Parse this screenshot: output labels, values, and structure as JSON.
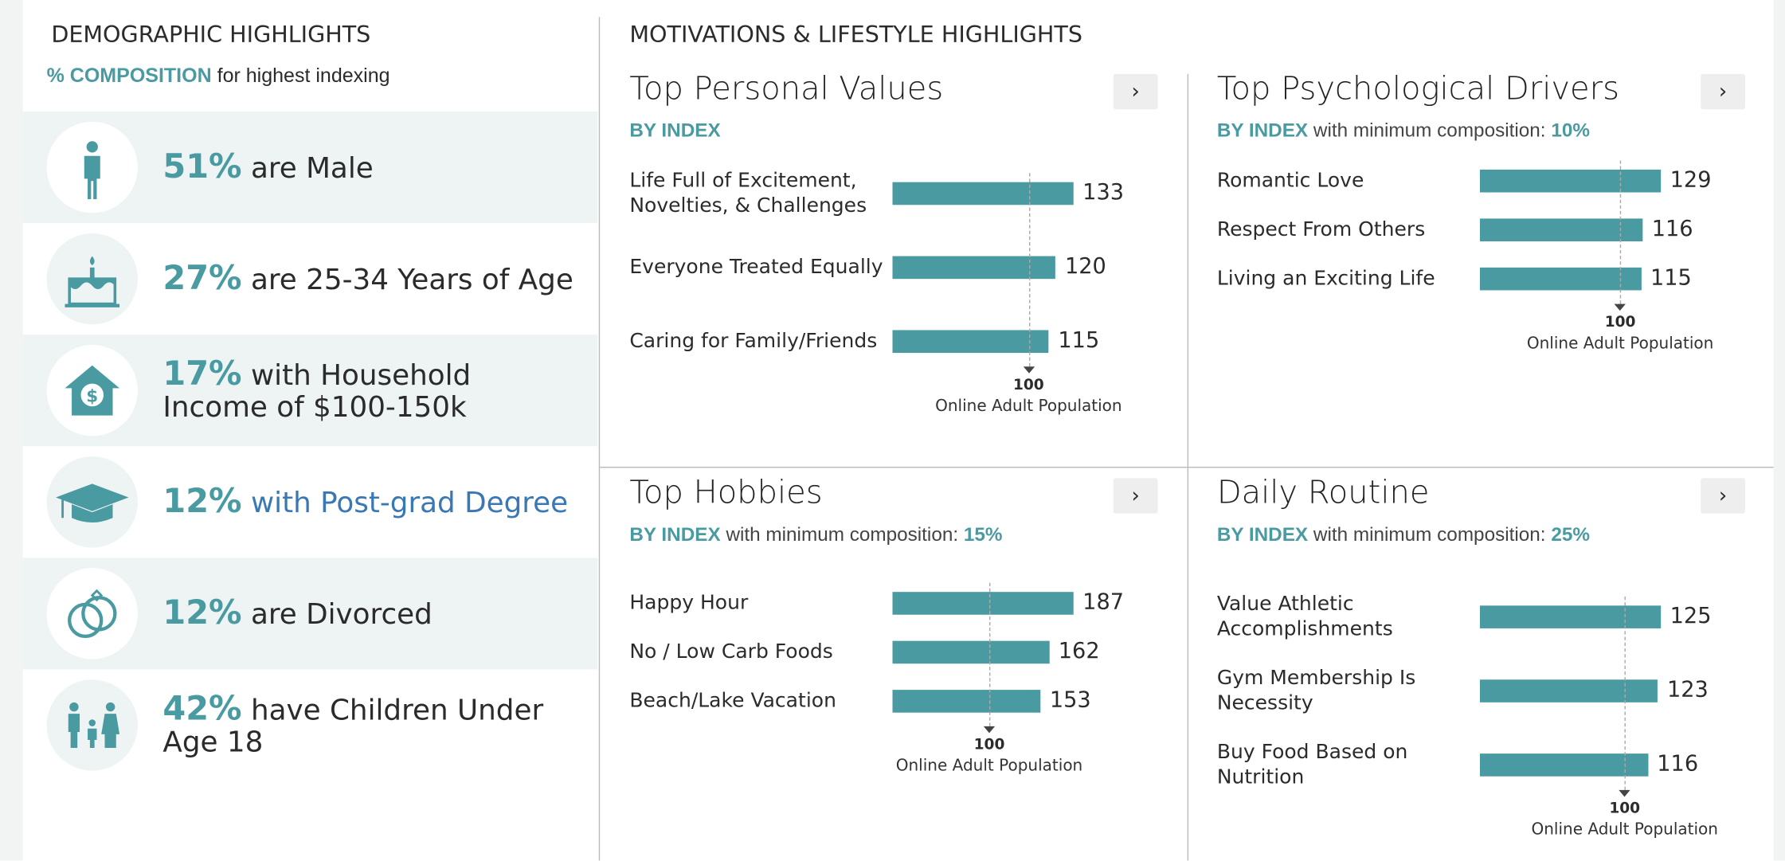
{
  "demographics": {
    "title": "DEMOGRAPHIC HIGHLIGHTS",
    "subtitle_highlight": "% COMPOSITION",
    "subtitle_rest": "for highest indexing",
    "items": [
      {
        "percent": "51%",
        "text": "are Male"
      },
      {
        "percent": "27%",
        "text": "are 25-34 Years of Age"
      },
      {
        "percent": "17%",
        "text": "with Household Income of $100-150k"
      },
      {
        "percent": "12%",
        "text": "with Post-grad Degree"
      },
      {
        "percent": "12%",
        "text": "are Divorced"
      },
      {
        "percent": "42%",
        "text": "have Children Under Age 18"
      }
    ]
  },
  "motivations": {
    "title": "MOTIVATIONS & LIFESTYLE HIGHLIGHTS",
    "panels": [
      {
        "title": "Top Personal Values",
        "by": "BY INDEX",
        "categories": [
          "Life Full of Excitement, Novelties, & Challenges",
          "Everyone Treated Equally",
          "Caring for Family/Friends"
        ],
        "values": [
          133,
          120,
          115
        ],
        "reference": 100,
        "reference_label": "Online Adult Population"
      },
      {
        "title": "Top Psychological Drivers",
        "by": "BY INDEX",
        "min_text": "with minimum composition:",
        "min_value": "10%",
        "categories": [
          "Romantic Love",
          "Respect From Others",
          "Living an Exciting Life"
        ],
        "values": [
          129,
          116,
          115
        ],
        "reference": 100,
        "reference_label": "Online Adult Population"
      },
      {
        "title": "Top Hobbies",
        "by": "BY INDEX",
        "min_text": "with minimum composition:",
        "min_value": "15%",
        "categories": [
          "Happy Hour",
          "No / Low Carb Foods",
          "Beach/Lake Vacation"
        ],
        "values": [
          187,
          162,
          153
        ],
        "reference": 100,
        "reference_label": "Online Adult Population"
      },
      {
        "title": "Daily Routine",
        "by": "BY INDEX",
        "min_text": "with minimum composition:",
        "min_value": "25%",
        "categories": [
          "Value Athletic Accomplishments",
          "Gym Membership Is Necessity",
          "Buy Food Based on Nutrition"
        ],
        "values": [
          125,
          123,
          116
        ],
        "reference": 100,
        "reference_label": "Online Adult Population"
      }
    ]
  }
}
